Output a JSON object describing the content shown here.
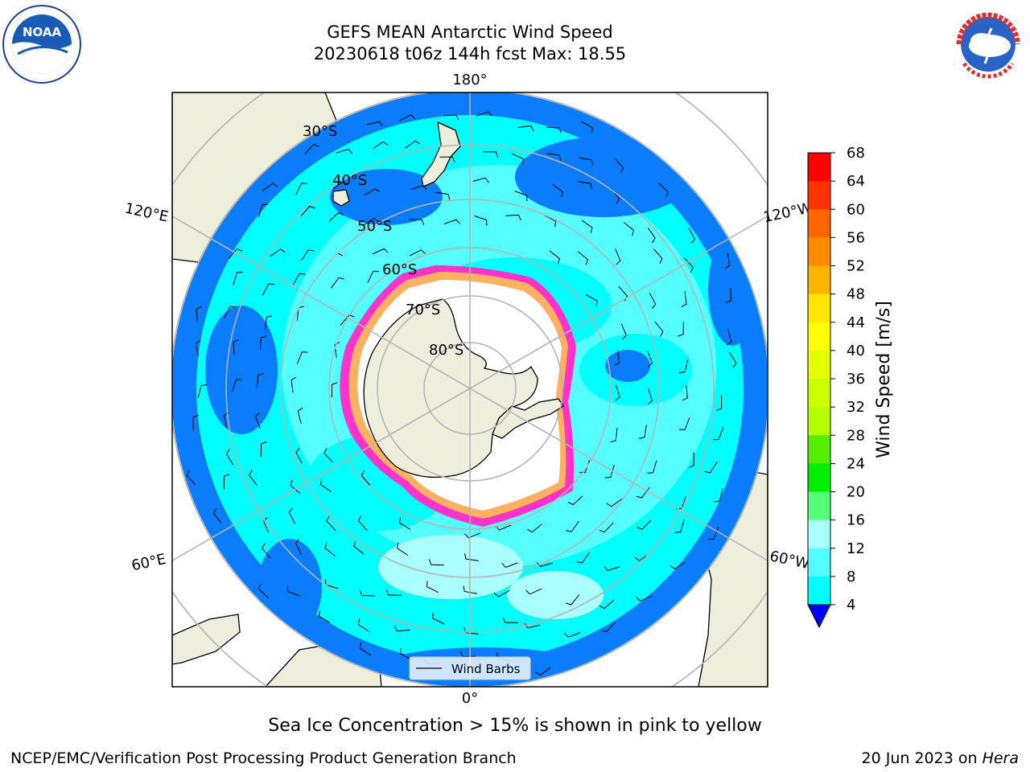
{
  "header": {
    "title_line1": "GEFS MEAN Antarctic Wind Speed",
    "title_line2": "20230618 t06z 144h fcst   Max: 18.55"
  },
  "map": {
    "projection": "south polar stereographic",
    "longitude_labels": {
      "top": "180°",
      "bottom": "0°",
      "upper_left": "120°E",
      "upper_right": "120°W",
      "lower_left": "60°E",
      "lower_right": "60°W"
    },
    "latitude_labels": [
      "30°S",
      "40°S",
      "50°S",
      "60°S",
      "70°S",
      "80°S"
    ],
    "legend_label": "Wind Barbs",
    "colors": {
      "land": "#eeeedd",
      "ocean_4_8": "#0a7dff",
      "ocean_8_12": "#00ffff",
      "ocean_12_16": "#55ffff",
      "sea_ice_edge": "#ff33cc",
      "sea_ice_inner": "#ffb060",
      "grid": "#b4b4b4"
    }
  },
  "colorbar": {
    "label": "Wind Speed [m/s]",
    "ticks": [
      "68",
      "64",
      "60",
      "56",
      "52",
      "48",
      "44",
      "40",
      "36",
      "32",
      "28",
      "24",
      "20",
      "16",
      "12",
      "8",
      "4"
    ],
    "colors": [
      "#ff0000",
      "#ff3300",
      "#ff6600",
      "#ff8c00",
      "#ffb400",
      "#ffe600",
      "#ffff00",
      "#e6ff00",
      "#ccff00",
      "#b4ff00",
      "#55ee00",
      "#00ee00",
      "#55ff77",
      "#aaffff",
      "#55ffff",
      "#00ffff",
      "#0a7dff"
    ],
    "extend_color": "#0000ff"
  },
  "footer": {
    "caption": "Sea Ice Concentration > 15% is shown in pink to yellow",
    "left": "NCEP/EMC/Verification Post Processing Product Generation Branch",
    "right_date": "20 Jun 2023 on ",
    "right_system": "Hera"
  },
  "logos": {
    "left": "noaa-logo",
    "right": "national-weather-service-logo",
    "left_text": "NOAA",
    "left_ring_text": "NATIONAL OCEANIC AND ATMOSPHERIC ADMINISTRATION · U.S. DEPARTMENT OF COMMERCE",
    "right_ring_text": "NATIONAL WEATHER SERVICE"
  }
}
